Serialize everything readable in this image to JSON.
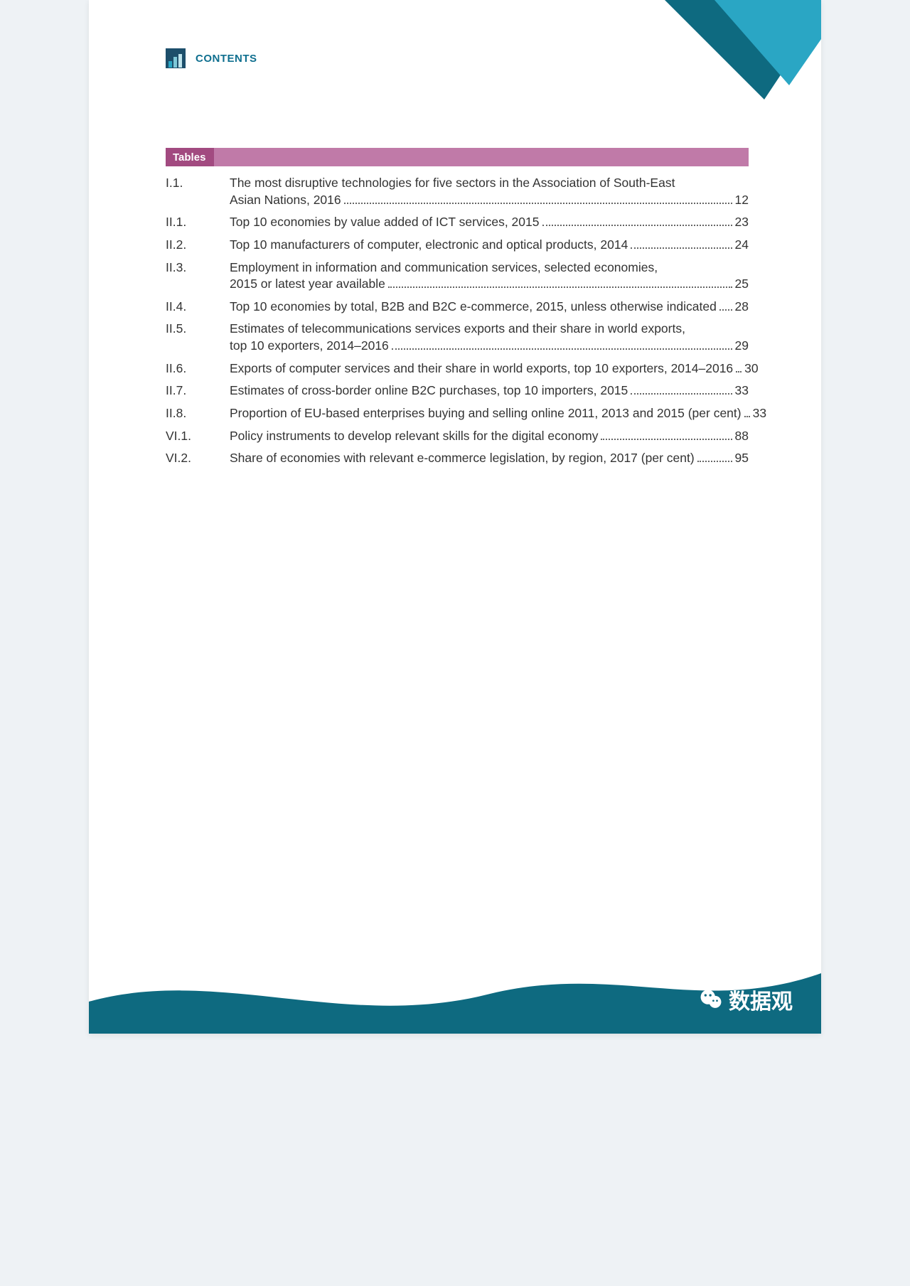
{
  "colors": {
    "page_bg": "#eef2f5",
    "paper": "#ffffff",
    "header_text": "#0f6f8f",
    "header_icon_bg": "#1d4f6b",
    "section_cap": "#a24a80",
    "section_fill": "#c07aa8",
    "body_text": "#333333",
    "dot": "#666666",
    "wave": "#0e6a80",
    "corner_dark": "#0e6a80",
    "corner_light": "#2aa6c4"
  },
  "header": {
    "label": "CONTENTS"
  },
  "section": {
    "label": "Tables"
  },
  "toc": [
    {
      "num": "I.1.",
      "lines": [
        "The most disruptive technologies for five sectors in the Association of South-East",
        "Asian Nations, 2016"
      ],
      "page": "12"
    },
    {
      "num": "II.1.",
      "lines": [
        "Top 10 economies by value added of ICT services, 2015"
      ],
      "page": "23"
    },
    {
      "num": "II.2.",
      "lines": [
        "Top 10 manufacturers of computer, electronic and optical products, 2014"
      ],
      "page": "24"
    },
    {
      "num": "II.3.",
      "lines": [
        "Employment in information and communication services, selected economies,",
        "2015 or latest year available"
      ],
      "page": "25"
    },
    {
      "num": "II.4.",
      "lines": [
        "Top 10 economies by total, B2B and B2C e-commerce, 2015, unless otherwise indicated"
      ],
      "page": "28"
    },
    {
      "num": "II.5.",
      "lines": [
        "Estimates of telecommunications services exports and their share in world exports,",
        "top 10 exporters, 2014–2016"
      ],
      "page": "29"
    },
    {
      "num": "II.6.",
      "lines": [
        "Exports of computer services and their share in world exports, top 10 exporters, 2014–2016"
      ],
      "page": "30"
    },
    {
      "num": "II.7.",
      "lines": [
        "Estimates of cross-border online B2C purchases, top 10 importers, 2015"
      ],
      "page": "33"
    },
    {
      "num": "II.8.",
      "lines": [
        "Proportion of EU-based enterprises buying and selling online 2011, 2013 and 2015 (per cent)"
      ],
      "page": "33"
    },
    {
      "num": "VI.1.",
      "lines": [
        "Policy instruments to develop relevant skills for the digital economy"
      ],
      "page": "88"
    },
    {
      "num": "VI.2.",
      "lines": [
        "Share of economies with relevant e-commerce legislation, by region, 2017 (per cent)"
      ],
      "page": "95"
    }
  ],
  "footer": {
    "brand": "数据观"
  }
}
